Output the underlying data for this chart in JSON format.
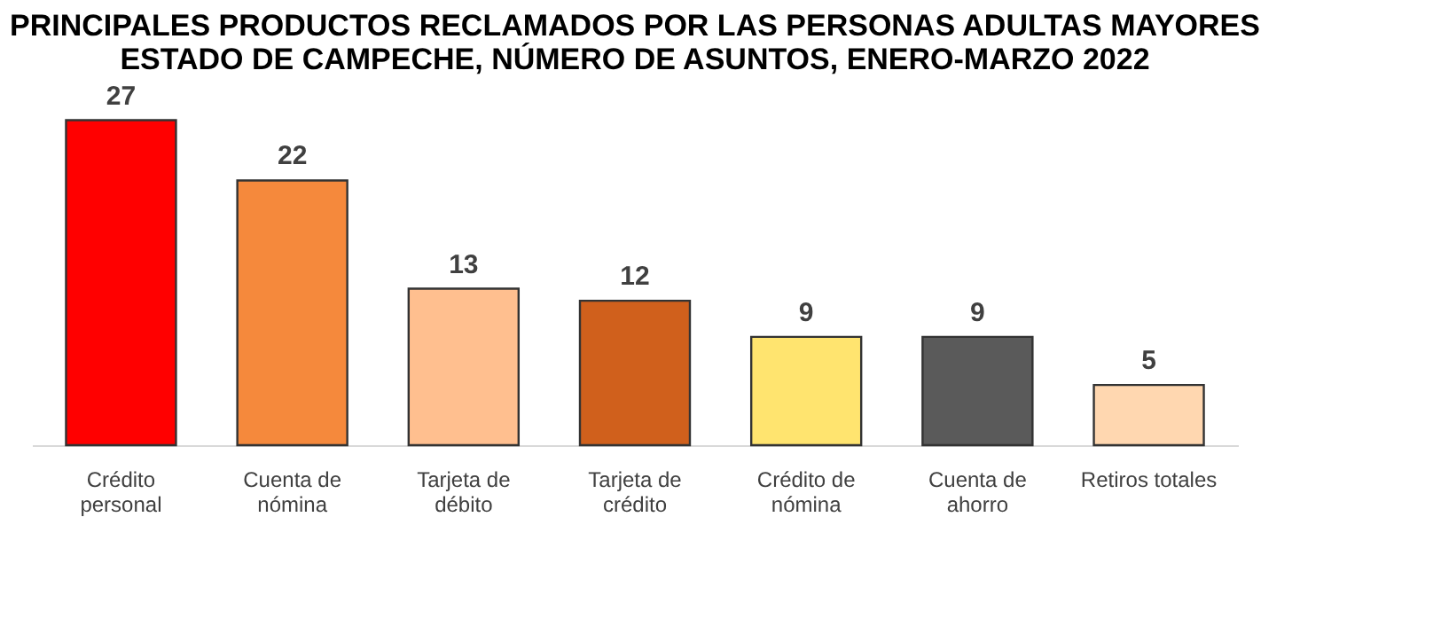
{
  "chart_data": {
    "type": "bar",
    "title": [
      "PRINCIPALES PRODUCTOS RECLAMADOS POR LAS PERSONAS ADULTAS MAYORES",
      "ESTADO DE CAMPECHE, NÚMERO DE ASUNTOS, ENERO-MARZO 2022"
    ],
    "categories": [
      "Crédito personal",
      "Cuenta de nómina",
      "Tarjeta de débito",
      "Tarjeta de crédito",
      "Crédito de nómina",
      "Cuenta de ahorro",
      "Retiros totales"
    ],
    "values": [
      27,
      22,
      13,
      12,
      9,
      9,
      5
    ],
    "colors": [
      "#ff0000",
      "#f5893c",
      "#ffbf8f",
      "#d0601c",
      "#ffe46f",
      "#5a5a5a",
      "#ffd7b0"
    ],
    "data_labels": true
  }
}
